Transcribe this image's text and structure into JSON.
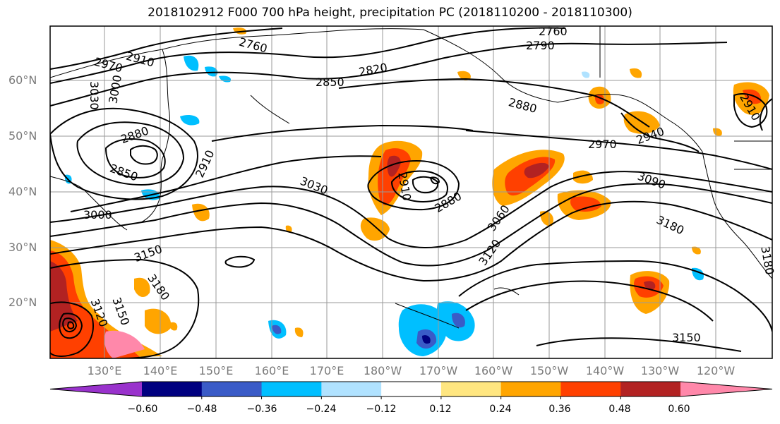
{
  "title": "2018102912 F000 700 hPa height, precipitation PC (2018110200 - 2018110300)",
  "lat_labels": [
    "60°N",
    "50°N",
    "40°N",
    "30°N",
    "20°N"
  ],
  "lon_labels": [
    "130°E",
    "140°E",
    "150°E",
    "160°E",
    "170°E",
    "180°W",
    "170°W",
    "160°W",
    "150°W",
    "140°W",
    "130°W",
    "120°W"
  ],
  "contour_labels": [
    "2760",
    "2790",
    "2760",
    "2910",
    "2970",
    "2820",
    "2850",
    "3030",
    "3000",
    "2880",
    "2880",
    "2940",
    "2910",
    "2970",
    "2850",
    "2910",
    "3030",
    "2910",
    "2880",
    "3090",
    "3060",
    "3000",
    "3120",
    "3180",
    "3150",
    "3180",
    "3150",
    "3150",
    "3120",
    "3180"
  ],
  "colorbar": {
    "tick_labels": [
      "−0.60",
      "−0.48",
      "−0.36",
      "−0.24",
      "−0.12",
      "0.12",
      "0.24",
      "0.36",
      "0.48",
      "0.60"
    ],
    "colors": [
      "#9932cc",
      "#000080",
      "#3a5bc7",
      "#00bfff",
      "#b0e2ff",
      "#ffffff",
      "#ffe680",
      "#ffa500",
      "#ff4000",
      "#b22222",
      "#ff88aa"
    ]
  }
}
